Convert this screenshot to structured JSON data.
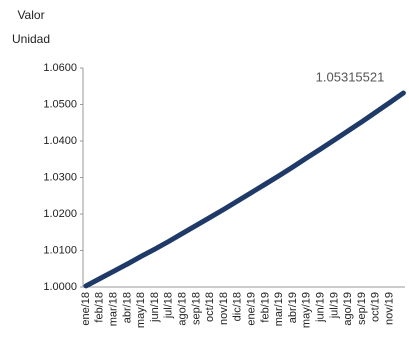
{
  "chart_data": {
    "type": "line",
    "y_label": "Valor Unidad",
    "annotation": "1.05315521",
    "categories": [
      "ene/18",
      "feb/18",
      "mar/18",
      "abr/18",
      "may/18",
      "jun/18",
      "jul/18",
      "ago/18",
      "sep/18",
      "oct/18",
      "nov/18",
      "dic/18",
      "ene/19",
      "feb/19",
      "mar/19",
      "abr/19",
      "may/19",
      "jun/19",
      "jul/19",
      "ago/19",
      "sep/19",
      "oct/19",
      "nov/19",
      null
    ],
    "values": [
      1.0003,
      1.0023,
      1.0043,
      1.0063,
      1.0084,
      1.0104,
      1.0125,
      1.0147,
      1.0169,
      1.0191,
      1.0213,
      1.0236,
      1.0259,
      1.0282,
      1.0305,
      1.0329,
      1.0354,
      1.0378,
      1.0403,
      1.0428,
      1.0453,
      1.0479,
      1.0505,
      1.05315521
    ],
    "color": "#1f3a68",
    "ylim": [
      1.0,
      1.06
    ],
    "yticks": [
      {
        "value": 1.0,
        "label": "1.0000"
      },
      {
        "value": 1.01,
        "label": "1.0100"
      },
      {
        "value": 1.02,
        "label": "1.0200"
      },
      {
        "value": 1.03,
        "label": "1.0300"
      },
      {
        "value": 1.04,
        "label": "1.0400"
      },
      {
        "value": 1.05,
        "label": "1.0500"
      },
      {
        "value": 1.06,
        "label": "1.0600"
      }
    ],
    "grid": false
  }
}
